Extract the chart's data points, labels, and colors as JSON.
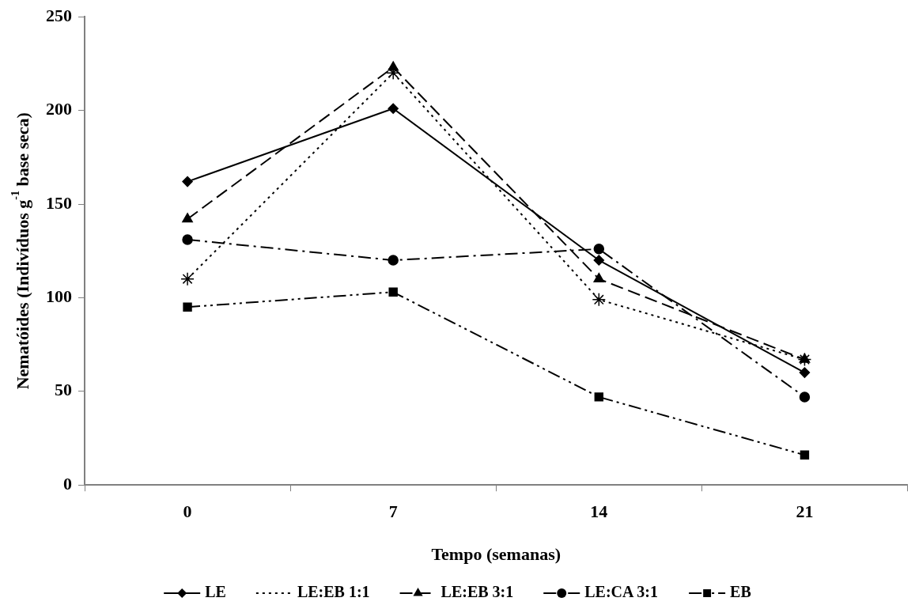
{
  "chart_data": {
    "type": "line",
    "xlabel": "Tempo (semanas)",
    "ylabel": "Nematóides (Indivíduos g$^{-1}$ base seca)",
    "categories": [
      "0",
      "7",
      "14",
      "21"
    ],
    "ylim": [
      0,
      250
    ],
    "yticks": [
      0,
      50,
      100,
      150,
      200,
      250
    ],
    "legend": "bottom",
    "series": [
      {
        "name": "LE",
        "color": "#000000",
        "marker": "diamond",
        "line_style": "solid",
        "values": [
          162,
          201,
          120,
          60
        ]
      },
      {
        "name": "LE:EB 1:1",
        "color": "#000000",
        "marker": "cross",
        "line_style": "dotted",
        "values": [
          110,
          220,
          99,
          67
        ]
      },
      {
        "name": "LE:EB 3:1",
        "color": "#000000",
        "marker": "triangle",
        "line_style": "dashed",
        "values": [
          142,
          223,
          110,
          67
        ]
      },
      {
        "name": "LE:CA 3:1",
        "color": "#000000",
        "marker": "circle",
        "line_style": "dashdot",
        "values": [
          131,
          120,
          126,
          47
        ]
      },
      {
        "name": "EB",
        "color": "#000000",
        "marker": "square",
        "line_style": "dashdotdot",
        "values": [
          95,
          103,
          47,
          16
        ]
      }
    ]
  }
}
